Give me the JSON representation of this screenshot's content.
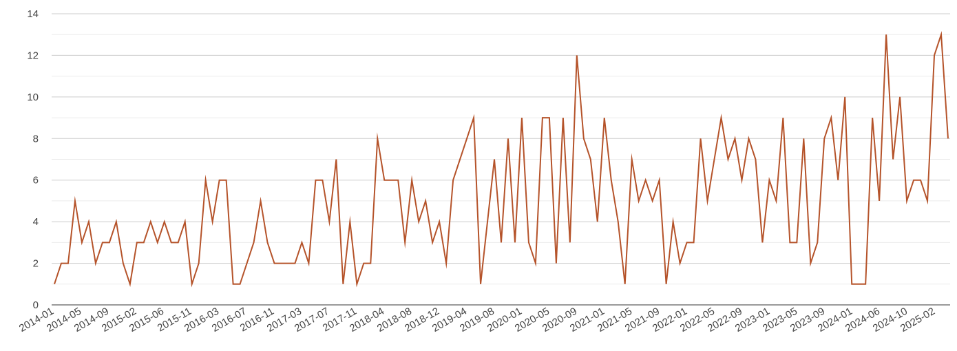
{
  "chart_data": {
    "type": "line",
    "title": "",
    "xlabel": "",
    "ylabel": "",
    "ylim": [
      0,
      14
    ],
    "y_ticks": [
      "0",
      "2",
      "4",
      "6",
      "8",
      "10",
      "12",
      "14"
    ],
    "grid": true,
    "line_color": "#b5532a",
    "x_tick_labels": [
      "2014-01",
      "2014-05",
      "2014-09",
      "2015-02",
      "2015-06",
      "2015-11",
      "2016-03",
      "2016-07",
      "2016-11",
      "2017-03",
      "2017-07",
      "2017-11",
      "2018-04",
      "2018-08",
      "2018-12",
      "2019-04",
      "2019-08",
      "2020-01",
      "2020-05",
      "2020-09",
      "2021-01",
      "2021-05",
      "2021-09",
      "2022-01",
      "2022-05",
      "2022-09",
      "2023-01",
      "2023-05",
      "2023-09",
      "2024-01",
      "2024-06",
      "2024-10",
      "2025-02"
    ],
    "series": [
      {
        "values": [
          1,
          2,
          2,
          5,
          3,
          4,
          2,
          3,
          3,
          4,
          2,
          1,
          3,
          3,
          4,
          3,
          4,
          3,
          3,
          4,
          1,
          2,
          6,
          4,
          6,
          6,
          1,
          1,
          2,
          3,
          5,
          3,
          2,
          2,
          2,
          2,
          3,
          2,
          6,
          6,
          4,
          7,
          1,
          4,
          1,
          2,
          2,
          8,
          6,
          6,
          6,
          3,
          6,
          4,
          5,
          3,
          4,
          2,
          6,
          7,
          8,
          9,
          1,
          4,
          7,
          3,
          8,
          3,
          9,
          3,
          2,
          9,
          9,
          2,
          9,
          3,
          12,
          8,
          7,
          4,
          9,
          6,
          4,
          1,
          7,
          5,
          6,
          5,
          6,
          1,
          4,
          2,
          3,
          3,
          8,
          5,
          7,
          9,
          7,
          8,
          6,
          8,
          7,
          3,
          6,
          5,
          9,
          3,
          3,
          8,
          2,
          3,
          8,
          9,
          6,
          10,
          1,
          1,
          1,
          9,
          5,
          13,
          7,
          10,
          5,
          6,
          6,
          5,
          12,
          13,
          8
        ]
      }
    ]
  }
}
